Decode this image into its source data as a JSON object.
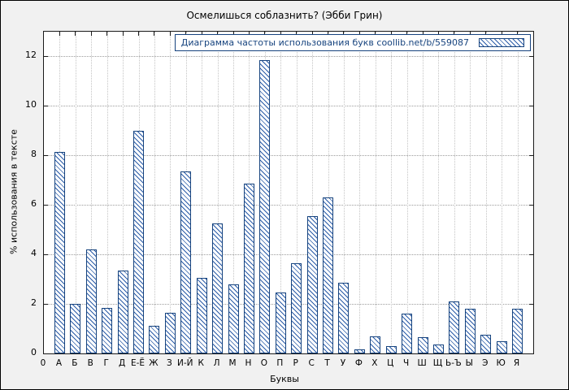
{
  "chart_data": {
    "type": "bar",
    "title": "Осмелишься соблазнить? (Эбби Грин)",
    "legend": "Диаграмма частоты использования букв  coollib.net/b/559087",
    "xlabel": "Буквы",
    "ylabel": "% использования в тексте",
    "origin_label": "0",
    "categories": [
      "А",
      "Б",
      "В",
      "Г",
      "Д",
      "Е-Ё",
      "Ж",
      "З",
      "И-Й",
      "К",
      "Л",
      "М",
      "Н",
      "О",
      "П",
      "Р",
      "С",
      "Т",
      "У",
      "Ф",
      "Х",
      "Ц",
      "Ч",
      "Ш",
      "Щ",
      "Ь-Ъ",
      "Ы",
      "Э",
      "Ю",
      "Я"
    ],
    "values": [
      8.15,
      2.0,
      4.2,
      1.85,
      3.35,
      9.0,
      1.1,
      1.65,
      7.35,
      3.05,
      5.25,
      2.8,
      6.85,
      11.85,
      2.45,
      3.65,
      5.55,
      6.3,
      2.85,
      0.15,
      0.7,
      0.3,
      1.6,
      0.65,
      0.35,
      2.1,
      1.8,
      0.75,
      0.5,
      1.8
    ],
    "ylim": [
      0,
      13
    ],
    "yticks": [
      0,
      2,
      4,
      6,
      8,
      10,
      12
    ],
    "grid": true,
    "legend_position": "top-right",
    "bar_color": "#16437e",
    "background_color": "#f1f1f1"
  }
}
